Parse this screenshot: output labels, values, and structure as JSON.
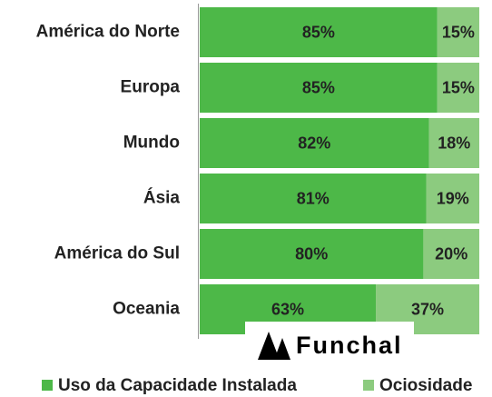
{
  "chart_data": {
    "type": "stacked_bar_horizontal",
    "categories": [
      "América do Norte",
      "Europa",
      "Mundo",
      "Ásia",
      "América do Sul",
      "Oceania"
    ],
    "series": [
      {
        "name": "Uso da Capacidade Instalada",
        "color": "#4db848",
        "values": [
          85,
          85,
          82,
          81,
          80,
          63
        ],
        "value_labels": [
          "85%",
          "85%",
          "82%",
          "81%",
          "80%",
          "63%"
        ]
      },
      {
        "name": "Ociosidade",
        "color": "#8ccb7f",
        "values": [
          15,
          15,
          18,
          19,
          20,
          37
        ],
        "value_labels": [
          "15%",
          "15%",
          "18%",
          "19%",
          "20%",
          "37%"
        ]
      }
    ],
    "xlim": [
      0,
      100
    ],
    "watermark": "Funchal"
  }
}
